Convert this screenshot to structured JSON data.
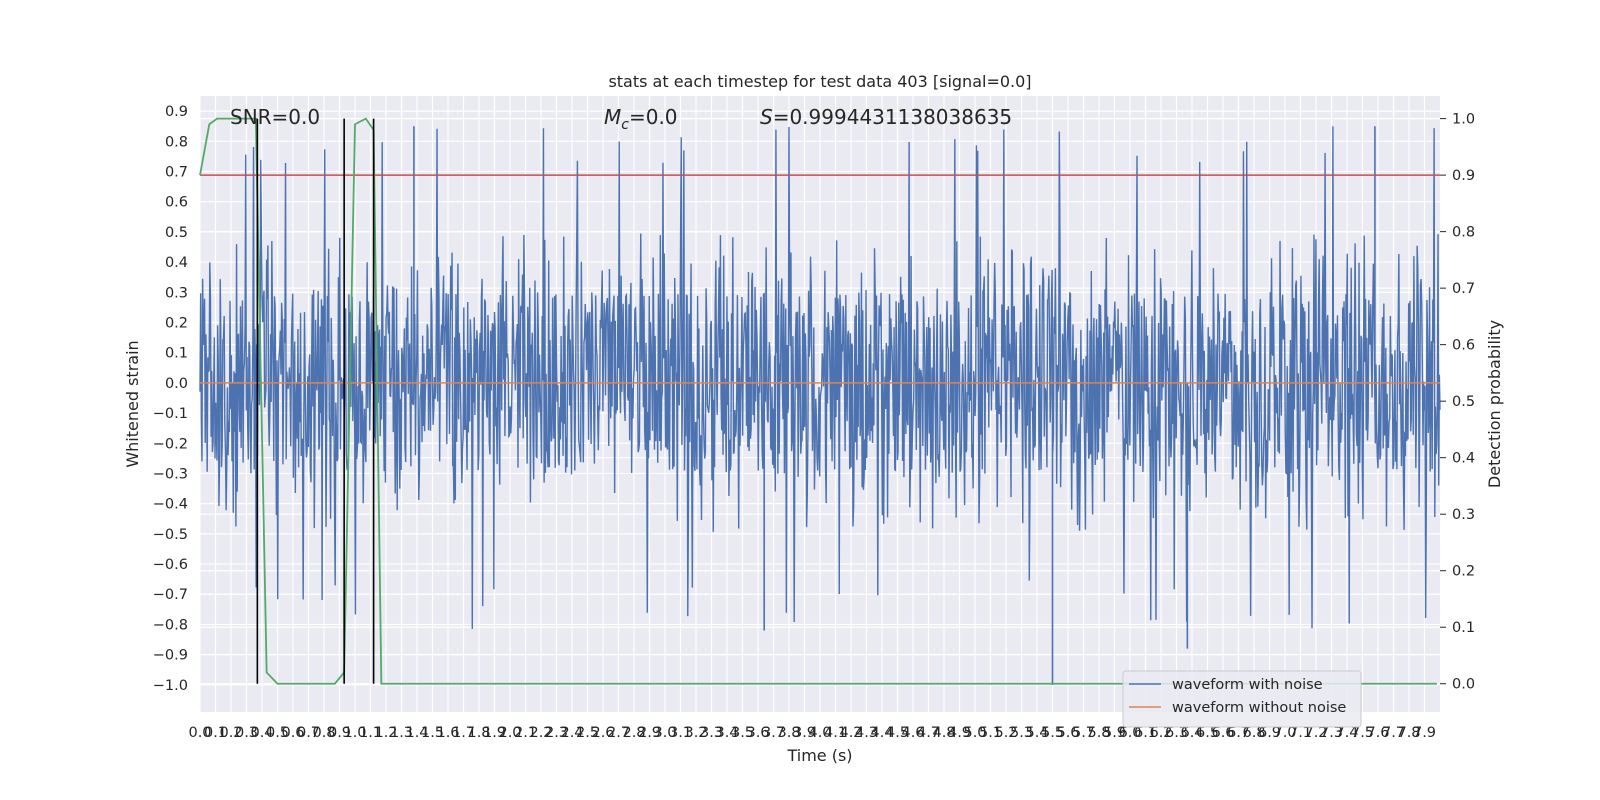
{
  "chart_data": {
    "type": "line",
    "title": "stats at each timestep for test data 403 [signal=0.0]",
    "xlabel": "Time (s)",
    "ylabel": "Whitened strain",
    "y2label": "Detection probability",
    "xlim": [
      0.0,
      8.0
    ],
    "ylim": [
      -1.09,
      0.95
    ],
    "y2lim": [
      -0.05,
      1.04
    ],
    "grid": true,
    "legend_position": "lower-right",
    "x_ticks": [
      "0.0",
      "0.1",
      "0.2",
      "0.3",
      "0.4",
      "0.5",
      "0.6",
      "0.7",
      "0.8",
      "0.9",
      "1.0",
      "1.1",
      "1.2",
      "1.3",
      "1.4",
      "1.5",
      "1.6",
      "1.7",
      "1.8",
      "1.9",
      "2.0",
      "2.1",
      "2.2",
      "2.3",
      "2.4",
      "2.5",
      "2.6",
      "2.7",
      "2.8",
      "2.9",
      "3.0",
      "3.1",
      "3.2",
      "3.3",
      "3.4",
      "3.5",
      "3.6",
      "3.7",
      "3.8",
      "3.9",
      "4.0",
      "4.1",
      "4.2",
      "4.3",
      "4.4",
      "4.5",
      "4.6",
      "4.7",
      "4.8",
      "4.9",
      "5.0",
      "5.1",
      "5.2",
      "5.3",
      "5.4",
      "5.5",
      "5.6",
      "5.7",
      "5.8",
      "5.9",
      "6.0",
      "6.1",
      "6.2",
      "6.3",
      "6.4",
      "6.5",
      "6.6",
      "6.7",
      "6.8",
      "6.9",
      "7.0",
      "7.1",
      "7.2",
      "7.3",
      "7.4",
      "7.5",
      "7.6",
      "7.7",
      "7.8",
      "7.9"
    ],
    "y_ticks": [
      0.9,
      0.8,
      0.7,
      0.6,
      0.5,
      0.4,
      0.3,
      0.2,
      0.1,
      0.0,
      -0.1,
      -0.2,
      -0.3,
      -0.4,
      -0.5,
      -0.6,
      -0.7,
      -0.8,
      -0.9,
      -1.0
    ],
    "y_tick_labels": [
      "0.9",
      "0.8",
      "0.7",
      "0.6",
      "0.5",
      "0.4",
      "0.3",
      "0.2",
      "0.1",
      "0.0",
      "−0.1",
      "−0.2",
      "−0.3",
      "−0.4",
      "−0.5",
      "−0.6",
      "−0.7",
      "−0.8",
      "−0.9",
      "−1.0"
    ],
    "y2_ticks": [
      1.0,
      0.9,
      0.8,
      0.7,
      0.6,
      0.5,
      0.4,
      0.3,
      0.2,
      0.1,
      0.0
    ],
    "y2_tick_labels": [
      "1.0",
      "0.9",
      "0.8",
      "0.7",
      "0.6",
      "0.5",
      "0.4",
      "0.3",
      "0.2",
      "0.1",
      "0.0"
    ],
    "annotations": {
      "snr": "SNR=0.0",
      "mc_symbol": "M",
      "mc_sub": "c",
      "mc_value": "=0.0",
      "s_symbol": "S",
      "s_value": "=0.9994431138038635"
    },
    "series": [
      {
        "name": "waveform with noise",
        "color": "#4c72b0",
        "kind": "noise",
        "core_abs": 0.3,
        "typical_max": 0.45,
        "typical_min": -0.45,
        "peak_max": 0.85,
        "peak_min": -1.0
      },
      {
        "name": "waveform without noise",
        "color": "#dd8452",
        "x": [
          0.0,
          8.0
        ],
        "y": [
          0.0,
          0.0
        ]
      },
      {
        "name": "detection probability",
        "axis": "right",
        "color": "#55a868",
        "x": [
          0.0,
          0.06,
          0.11,
          0.2,
          0.3,
          0.36,
          0.43,
          0.5,
          0.6,
          0.7,
          0.8,
          0.87,
          0.93,
          1.0,
          1.07,
          1.12,
          1.17,
          1.2,
          1.5,
          2.0,
          3.0,
          4.0,
          5.0,
          6.0,
          7.0,
          7.98
        ],
        "y": [
          0.9,
          0.99,
          1.0,
          1.0,
          1.0,
          1.0,
          0.02,
          0.0,
          0.0,
          0.0,
          0.0,
          0.0,
          0.02,
          0.99,
          1.0,
          0.98,
          0.0,
          0.0,
          0.0,
          0.0,
          0.0,
          0.0,
          0.0,
          0.0,
          0.0,
          0.0
        ]
      },
      {
        "name": "threshold",
        "axis": "right",
        "color": "#c44e52",
        "x": [
          0.0,
          8.0
        ],
        "y": [
          0.9,
          0.9
        ]
      }
    ],
    "vertical_markers": {
      "color": "#000000",
      "x": [
        0.37,
        0.93,
        1.12
      ],
      "y2_range": [
        0.0,
        1.0
      ]
    }
  }
}
